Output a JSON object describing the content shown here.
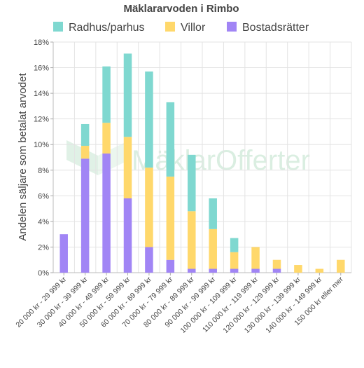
{
  "chart_data": {
    "type": "bar",
    "stacked": true,
    "title": "Mäklararvoden i Rimbo",
    "ylabel": "Andelen säljare som betalat arvodet",
    "xlabel": "",
    "ylim": [
      0,
      18
    ],
    "yticks": [
      "0%",
      "2%",
      "4%",
      "6%",
      "8%",
      "10%",
      "12%",
      "14%",
      "16%",
      "18%"
    ],
    "grid": true,
    "legend_position": "top",
    "watermark": "MäklarOfferter",
    "categories": [
      "20 000 kr - 29 999 kr",
      "30 000 kr - 39 999 kr",
      "40 000 kr - 49 999 kr",
      "50 000 kr - 59 999 kr",
      "60 000 kr - 69 999 kr",
      "70 000 kr - 79 999 kr",
      "80 000 kr - 89 999 kr",
      "90 000 kr - 99 999 kr",
      "100 000 kr - 109 999 kr",
      "110 000 kr - 119 999 kr",
      "120 000 kr - 129 999 kr",
      "130 000 kr - 139 999 kr",
      "140 000 kr - 149 999 kr",
      "150 000 kr eller mer"
    ],
    "series": [
      {
        "name": "Bostadsrätter",
        "color": "#a185f5",
        "values": [
          3.0,
          8.9,
          9.3,
          5.8,
          2.0,
          1.0,
          0.3,
          0.3,
          0.3,
          0.3,
          0.3,
          0.0,
          0.0,
          0.0
        ]
      },
      {
        "name": "Villor",
        "color": "#ffd86b",
        "values": [
          0.0,
          1.0,
          2.4,
          4.8,
          6.2,
          6.5,
          4.5,
          3.1,
          1.3,
          1.7,
          0.7,
          0.6,
          0.3,
          1.0
        ]
      },
      {
        "name": "Radhus/parhus",
        "color": "#7fd8d0",
        "values": [
          0.0,
          1.7,
          4.4,
          6.5,
          7.5,
          5.8,
          4.4,
          2.4,
          1.1,
          0.0,
          0.0,
          0.0,
          0.0,
          0.0
        ]
      }
    ],
    "legend_order": [
      "Radhus/parhus",
      "Villor",
      "Bostadsrätter"
    ]
  }
}
